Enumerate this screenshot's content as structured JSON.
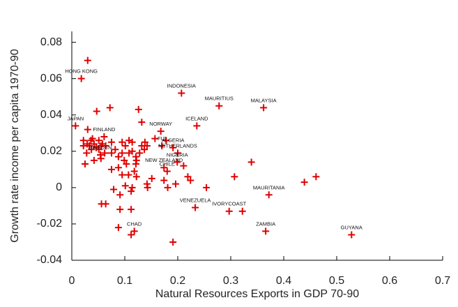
{
  "chart_data": {
    "type": "scatter",
    "xlabel": "Natural Resources Exports in GDP 70-90",
    "ylabel": "Growth rate income per capita 1970-90",
    "xlim": [
      0,
      0.7
    ],
    "ylim": [
      -0.04,
      0.086
    ],
    "xticks": [
      0,
      0.1,
      0.2,
      0.3,
      0.4,
      0.5,
      0.6,
      0.7
    ],
    "yticks": [
      -0.04,
      -0.02,
      0,
      0.02,
      0.04,
      0.06,
      0.08
    ],
    "series": [
      {
        "color": "#e00000",
        "x": [
          0.03,
          0.018,
          0.207,
          0.278,
          0.362,
          0.047,
          0.072,
          0.126,
          0.007,
          0.168,
          0.236,
          0.03,
          0.132,
          0.061,
          0.039,
          0.157,
          0.178,
          0.17,
          0.191,
          0.2,
          0.138,
          0.132,
          0.142,
          0.137,
          0.022,
          0.029,
          0.036,
          0.042,
          0.051,
          0.058,
          0.033,
          0.046,
          0.055,
          0.022,
          0.037,
          0.028,
          0.051,
          0.064,
          0.075,
          0.082,
          0.095,
          0.101,
          0.108,
          0.095,
          0.108,
          0.088,
          0.099,
          0.075,
          0.025,
          0.042,
          0.055,
          0.062,
          0.114,
          0.114,
          0.121,
          0.103,
          0.121,
          0.054,
          0.128,
          0.122,
          0.088,
          0.075,
          0.118,
          0.151,
          0.142,
          0.174,
          0.196,
          0.219,
          0.224,
          0.181,
          0.079,
          0.101,
          0.114,
          0.143,
          0.095,
          0.107,
          0.122,
          0.091,
          0.112,
          0.056,
          0.064,
          0.199,
          0.174,
          0.18,
          0.211,
          0.307,
          0.339,
          0.254,
          0.372,
          0.439,
          0.461,
          0.233,
          0.297,
          0.322,
          0.112,
          0.091,
          0.366,
          0.528,
          0.118,
          0.088,
          0.112,
          0.191
        ],
        "y": [
          0.07,
          0.06,
          0.052,
          0.045,
          0.044,
          0.042,
          0.044,
          0.043,
          0.034,
          0.031,
          0.034,
          0.032,
          0.036,
          0.028,
          0.027,
          0.027,
          0.026,
          0.023,
          0.022,
          0.019,
          0.025,
          0.023,
          0.023,
          0.021,
          0.026,
          0.024,
          0.026,
          0.024,
          0.026,
          0.024,
          0.023,
          0.022,
          0.023,
          0.023,
          0.021,
          0.019,
          0.021,
          0.023,
          0.025,
          0.021,
          0.025,
          0.023,
          0.026,
          0.019,
          0.019,
          0.017,
          0.015,
          0.019,
          0.013,
          0.015,
          0.016,
          0.019,
          0.025,
          0.02,
          0.017,
          0.013,
          0.013,
          0.018,
          0.019,
          0.015,
          0.011,
          0.01,
          0.009,
          0.005,
          0.002,
          0.004,
          0.002,
          0.006,
          0.004,
          0.0,
          -0.001,
          0.001,
          0.0,
          0.0,
          0.007,
          0.007,
          0.006,
          -0.004,
          -0.002,
          -0.009,
          -0.009,
          0.014,
          0.011,
          0.009,
          0.012,
          0.006,
          0.014,
          0.0,
          -0.004,
          0.003,
          0.006,
          -0.011,
          -0.013,
          -0.013,
          -0.012,
          -0.012,
          -0.024,
          -0.026,
          -0.024,
          -0.022,
          -0.026,
          -0.03
        ],
        "labels": [
          null,
          "HONG KONG",
          "INDONESIA",
          "MAURITIUS",
          "MALAYSIA",
          null,
          null,
          null,
          "JAPAN",
          "NORWAY",
          "ICELAND",
          null,
          null,
          "FINLAND",
          null,
          null,
          null,
          "FIJI",
          "ALGERIA",
          "NETHERLANDS",
          null,
          null,
          null,
          null,
          null,
          null,
          null,
          null,
          null,
          null,
          null,
          null,
          null,
          null,
          null,
          null,
          null,
          null,
          null,
          null,
          null,
          null,
          null,
          null,
          null,
          null,
          null,
          null,
          null,
          null,
          null,
          null,
          null,
          null,
          null,
          null,
          null,
          "SWEDEN",
          null,
          null,
          null,
          null,
          null,
          null,
          null,
          null,
          null,
          null,
          null,
          null,
          null,
          null,
          null,
          null,
          null,
          null,
          null,
          null,
          null,
          null,
          null,
          "NIGERIA",
          "NEW ZEALAND",
          "CHILE",
          null,
          null,
          null,
          null,
          "MAURITANIA",
          null,
          null,
          "VENEZUELA",
          "IVORYCOAST",
          null,
          null,
          null,
          "ZAMBIA",
          "GUYANA",
          "CHAD",
          null,
          null,
          null
        ]
      }
    ]
  }
}
